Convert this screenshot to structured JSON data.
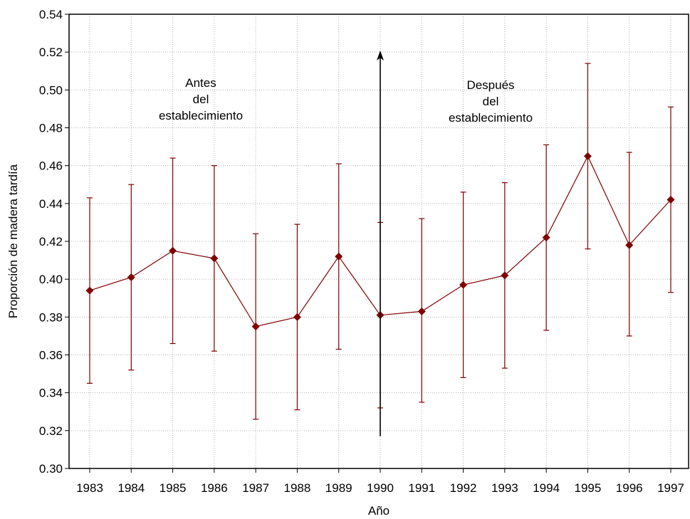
{
  "chart_data": {
    "type": "line",
    "title": "",
    "xlabel": "Año",
    "ylabel": "Proporción de madera tardía",
    "ylim": [
      0.3,
      0.54
    ],
    "yticks": [
      "0.30",
      "0.32",
      "0.34",
      "0.36",
      "0.38",
      "0.40",
      "0.42",
      "0.44",
      "0.46",
      "0.48",
      "0.50",
      "0.52",
      "0.54"
    ],
    "grid": true,
    "categories": [
      "1983",
      "1984",
      "1985",
      "1986",
      "1987",
      "1988",
      "1989",
      "1990",
      "1991",
      "1992",
      "1993",
      "1994",
      "1995",
      "1996",
      "1997"
    ],
    "series": [
      {
        "values": [
          0.394,
          0.401,
          0.415,
          0.411,
          0.375,
          0.38,
          0.412,
          0.381,
          0.383,
          0.397,
          0.402,
          0.422,
          0.465,
          0.418,
          0.442
        ],
        "lower": [
          0.345,
          0.352,
          0.366,
          0.362,
          0.326,
          0.331,
          0.363,
          0.332,
          0.335,
          0.348,
          0.353,
          0.373,
          0.416,
          0.37,
          0.393
        ],
        "upper": [
          0.443,
          0.45,
          0.464,
          0.46,
          0.424,
          0.429,
          0.461,
          0.43,
          0.432,
          0.446,
          0.451,
          0.471,
          0.514,
          0.467,
          0.491
        ],
        "color": "#800000"
      }
    ],
    "annotations": [
      {
        "lines": [
          "Antes",
          "del",
          "establecimiento"
        ]
      },
      {
        "lines": [
          "Después",
          "del",
          "establecimiento"
        ]
      }
    ],
    "divider": {
      "x": "1990",
      "y_from": 0.317,
      "y_to": 0.52,
      "color": "#000000"
    }
  }
}
